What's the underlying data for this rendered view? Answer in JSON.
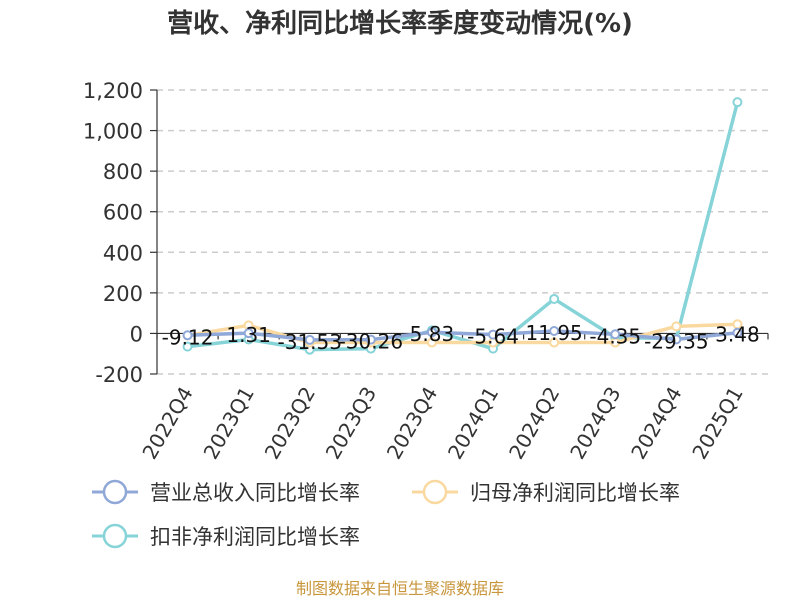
{
  "chart_data": {
    "type": "line",
    "title": "营收、净利同比增长率季度变动情况(%)",
    "categories": [
      "2022Q4",
      "2023Q1",
      "2023Q2",
      "2023Q3",
      "2023Q4",
      "2024Q1",
      "2024Q2",
      "2024Q3",
      "2024Q4",
      "2025Q1"
    ],
    "ylim": [
      -200,
      1200
    ],
    "yticks": [
      -200,
      0,
      200,
      400,
      600,
      800,
      1000,
      1200
    ],
    "ytick_labels": [
      "-200",
      "0",
      "200",
      "400",
      "600",
      "800",
      "1,000",
      "1,200"
    ],
    "grid": true,
    "legend_position": "bottom",
    "series": [
      {
        "name": "营业总收入同比增长率",
        "color": "#8fa8d8",
        "values": [
          -9.12,
          1.31,
          -31.53,
          -30.26,
          5.83,
          -5.64,
          11.95,
          -4.35,
          -29.35,
          3.48
        ],
        "labels": [
          "-9.12",
          "1.31",
          "-31.53",
          "-30.26",
          "5.83",
          "-5.64",
          "11.95",
          "-4.35",
          "-29.35",
          "3.48"
        ]
      },
      {
        "name": "归母净利润同比增长率",
        "color": "#fad9a0",
        "values": [
          -10,
          40,
          -45,
          -45,
          -45,
          -45,
          -45,
          -45,
          35,
          45
        ]
      },
      {
        "name": "扣非净利润同比增长率",
        "color": "#86d3d8",
        "values": [
          -65,
          -30,
          -80,
          -75,
          15,
          -75,
          170,
          -20,
          -25,
          1140
        ]
      }
    ]
  },
  "watermark": "制图数据来自恒生聚源数据库"
}
